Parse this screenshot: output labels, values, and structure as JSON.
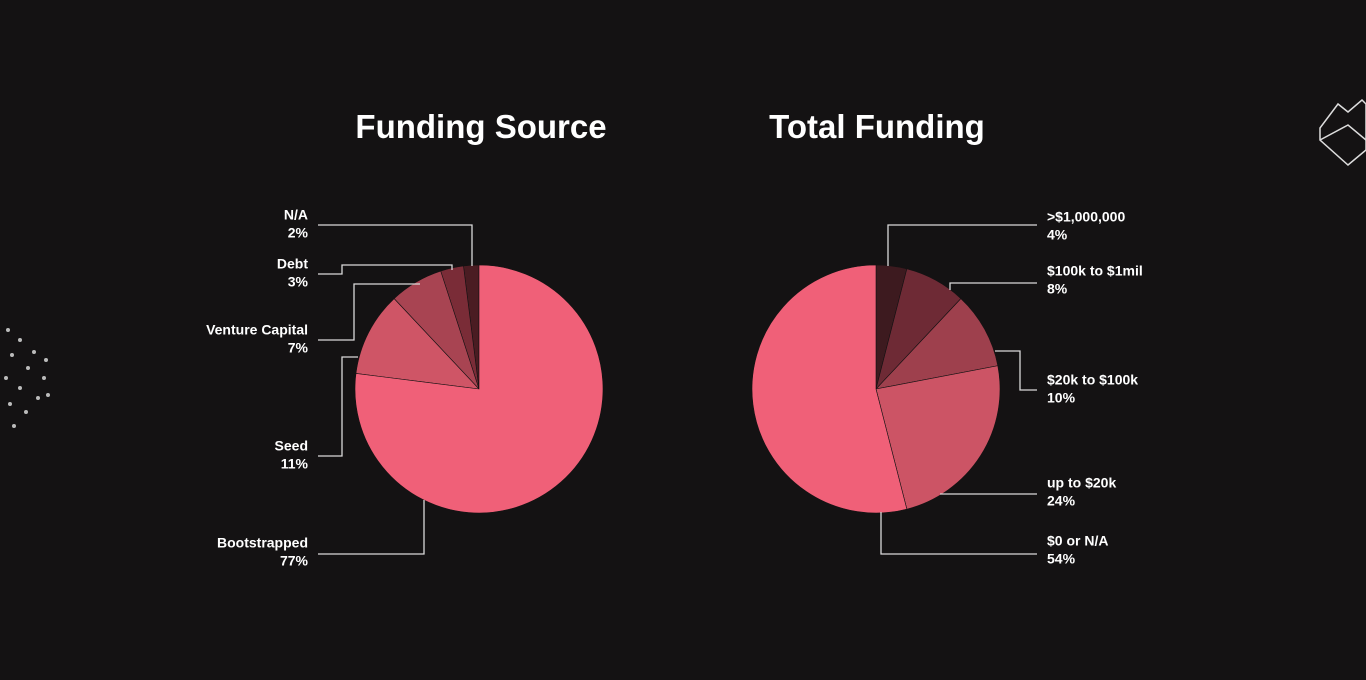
{
  "chart_data": [
    {
      "type": "pie",
      "title": "Funding Source",
      "categories": [
        "N/A",
        "Debt",
        "Venture Capital",
        "Seed",
        "Bootstrapped"
      ],
      "values": [
        2,
        3,
        7,
        11,
        77
      ],
      "value_labels": [
        "2%",
        "3%",
        "7%",
        "11%",
        "77%"
      ],
      "colors": [
        "#4a1c22",
        "#7a2c37",
        "#a84452",
        "#cf5566",
        "#f06078"
      ]
    },
    {
      "type": "pie",
      "title": "Total Funding",
      "categories": [
        ">$1,000,000",
        "$100k to $1mil",
        "$20k to $100k",
        "up to $20k",
        "$0 or N/A"
      ],
      "values": [
        4,
        8,
        10,
        24,
        54
      ],
      "value_labels": [
        "4%",
        "8%",
        "10%",
        "24%",
        "54%"
      ],
      "colors": [
        "#3d1a1f",
        "#6e2a35",
        "#9e404d",
        "#cc5465",
        "#f06078"
      ]
    }
  ]
}
